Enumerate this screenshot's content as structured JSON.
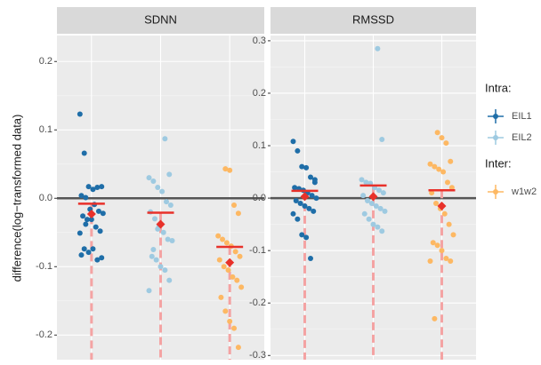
{
  "chart_data": {
    "type": "strip",
    "ylabel": "difference(log−transformed data)",
    "hline": 0,
    "grid": true,
    "mean_color": "#e8312a",
    "legend_titles": [
      "Intra:",
      "Inter:"
    ],
    "panels": [
      {
        "title": "SDNN",
        "ylim": [
          -0.236,
          0.238
        ],
        "yticks": [
          -0.2,
          -0.1,
          {
            "value": 0,
            "label": "0.0"
          },
          0.1,
          0.2
        ],
        "series": [
          {
            "name": "EIL1",
            "color": "#1f6ea8",
            "legend_group": 0,
            "mean": -0.008,
            "median": -0.023,
            "values": [
              0.123,
              0.066,
              0.017,
              0.013,
              0.016,
              0.017,
              0.004,
              0.001,
              -0.016,
              -0.009,
              -0.019,
              -0.022,
              -0.026,
              -0.031,
              -0.031,
              -0.042,
              -0.048,
              -0.051,
              -0.074,
              -0.079,
              -0.074,
              -0.09,
              -0.087,
              -0.083,
              -0.038
            ]
          },
          {
            "name": "EIL2",
            "color": "#9ecae1",
            "legend_group": 0,
            "mean": -0.021,
            "median": -0.038,
            "values": [
              0.087,
              0.035,
              0.03,
              0.025,
              0.016,
              0.01,
              -0.005,
              -0.01,
              -0.02,
              -0.03,
              -0.04,
              -0.05,
              -0.06,
              -0.062,
              -0.085,
              -0.09,
              -0.1,
              -0.105,
              -0.12,
              -0.135,
              -0.075,
              -0.045
            ]
          },
          {
            "name": "w1w2",
            "color": "#fdb863",
            "legend_group": 1,
            "mean": -0.071,
            "median": -0.094,
            "values": [
              0.043,
              0.041,
              -0.01,
              -0.022,
              -0.055,
              -0.06,
              -0.065,
              -0.07,
              -0.078,
              -0.085,
              -0.09,
              -0.1,
              -0.105,
              -0.115,
              -0.12,
              -0.13,
              -0.145,
              -0.165,
              -0.18,
              -0.19,
              -0.218
            ]
          }
        ]
      },
      {
        "title": "RMSSD",
        "ylim": [
          -0.308,
          0.31
        ],
        "yticks": [
          -0.3,
          -0.2,
          -0.1,
          {
            "value": 0,
            "label": "0.0"
          },
          0.1,
          0.2,
          0.3
        ],
        "series": [
          {
            "name": "EIL1",
            "color": "#1f6ea8",
            "legend_group": 0,
            "mean": 0.014,
            "median": 0.003,
            "values": [
              0.108,
              0.09,
              0.06,
              0.058,
              0.04,
              0.03,
              0.02,
              0.018,
              0.015,
              0.01,
              0.005,
              0.0,
              -0.005,
              -0.01,
              -0.015,
              -0.02,
              -0.025,
              -0.03,
              -0.04,
              -0.07,
              -0.075,
              -0.115,
              0.035
            ]
          },
          {
            "name": "EIL2",
            "color": "#9ecae1",
            "legend_group": 0,
            "mean": 0.024,
            "median": 0.003,
            "values": [
              0.285,
              0.112,
              0.035,
              0.03,
              0.028,
              0.02,
              0.015,
              0.01,
              0.005,
              -0.005,
              -0.01,
              -0.015,
              -0.02,
              -0.025,
              -0.03,
              -0.04,
              -0.05,
              -0.055,
              -0.063
            ]
          },
          {
            "name": "w1w2",
            "color": "#fdb863",
            "legend_group": 1,
            "mean": 0.015,
            "median": -0.015,
            "values": [
              0.125,
              0.115,
              0.105,
              0.07,
              0.065,
              0.06,
              0.055,
              0.05,
              0.03,
              0.02,
              0.01,
              -0.01,
              -0.02,
              -0.03,
              -0.05,
              -0.07,
              -0.085,
              -0.09,
              -0.1,
              -0.115,
              -0.12,
              -0.12,
              -0.23
            ]
          }
        ]
      }
    ]
  }
}
